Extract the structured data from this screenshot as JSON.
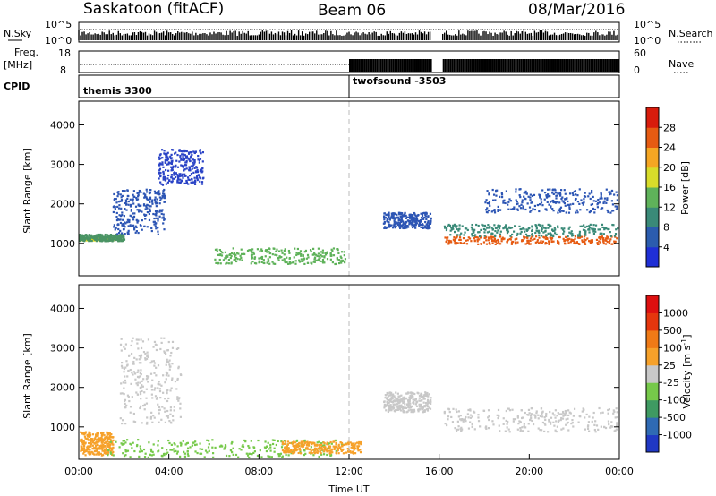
{
  "header": {
    "title": "Saskatoon (fitACF)",
    "beam": "Beam 06",
    "date": "08/Mar/2016"
  },
  "chart_data": [
    {
      "type": "line",
      "panel": "noise",
      "left_label": "N.Sky",
      "right_label": "N.Search",
      "yticks_left": [
        "10^5",
        "10^0"
      ],
      "yticks_right": [
        "10^5",
        "10^0"
      ],
      "note": "N.Search dotted"
    },
    {
      "type": "line",
      "panel": "frequency",
      "left_label_line1": "Freq.",
      "left_label_line2": "[MHz]",
      "right_label": "Nave",
      "yticks_left": [
        "18",
        "8"
      ],
      "yticks_right": [
        "60",
        "0"
      ],
      "gaps_hours": [
        [
          15.65,
          16.1
        ]
      ]
    },
    {
      "type": "table",
      "panel": "cpid",
      "label": "CPID",
      "entries": [
        {
          "start_hour": 0,
          "name": "themis 3300"
        },
        {
          "start_hour": 12,
          "name": "twofsound -3503"
        }
      ]
    },
    {
      "type": "heatmap",
      "panel": "power",
      "ylabel": "Slant Range [km]",
      "yticks": [
        "1000",
        "2000",
        "3000",
        "4000"
      ],
      "ylim": [
        180,
        4600
      ],
      "colorbar_label": "Power [dB]",
      "colorbar_ticks": [
        "4",
        "8",
        "12",
        "16",
        "20",
        "24",
        "28"
      ],
      "colorbar_colors": [
        "#1f2fd6",
        "#2b5cae",
        "#3a8a78",
        "#5fb25a",
        "#d8dc2a",
        "#f5a623",
        "#e65b12",
        "#d81c0c"
      ],
      "scatter_bands": [
        {
          "t": [
            0,
            1.5
          ],
          "range": [
            1100,
            1150
          ],
          "color": "#d8d61f"
        },
        {
          "t": [
            0.0,
            2.0
          ],
          "range": [
            1080,
            1250
          ],
          "color": "#4b9464"
        },
        {
          "t": [
            1.5,
            3.8
          ],
          "range": [
            1250,
            2400
          ],
          "color": "#2c55b4"
        },
        {
          "t": [
            3.5,
            5.5
          ],
          "range": [
            2500,
            3400
          ],
          "color": "#2a43c6"
        },
        {
          "t": [
            6,
            11.8
          ],
          "range": [
            500,
            900
          ],
          "color": "#5fb25a"
        },
        {
          "t": [
            16.2,
            23.9
          ],
          "range": [
            1000,
            1200
          ],
          "color": "#e65b12"
        },
        {
          "t": [
            13.5,
            15.6
          ],
          "range": [
            1400,
            1800
          ],
          "color": "#2c55b4"
        },
        {
          "t": [
            16.2,
            23.9
          ],
          "range": [
            1200,
            1500
          ],
          "color": "#3a8a78"
        },
        {
          "t": [
            18,
            23.9
          ],
          "range": [
            1800,
            2400
          ],
          "color": "#2c55b4"
        }
      ]
    },
    {
      "type": "heatmap",
      "panel": "velocity",
      "ylabel": "Slant Range [km]",
      "yticks": [
        "1000",
        "2000",
        "3000",
        "4000"
      ],
      "ylim": [
        180,
        4600
      ],
      "xlabel": "Time UT",
      "xticks": [
        "00:00",
        "04:00",
        "08:00",
        "12:00",
        "16:00",
        "20:00",
        "00:00"
      ],
      "xlim_hours": [
        0,
        24
      ],
      "colorbar_label": "Velocity [m s",
      "colorbar_label_sup": "-1",
      "colorbar_label_end": "]",
      "colorbar_ticks": [
        "1000",
        "500",
        "100",
        "25",
        "-25",
        "-100",
        "-500",
        "-1000"
      ],
      "colorbar_colors": [
        "#2038c4",
        "#2f6ab4",
        "#3f9a62",
        "#76c94a",
        "#c8c8c8",
        "#f6a12a",
        "#ef7a16",
        "#e5360d",
        "#dd1010"
      ],
      "scatter_bands": [
        {
          "t": [
            0,
            1.5
          ],
          "range": [
            300,
            900
          ],
          "color": "#f6a12a"
        },
        {
          "t": [
            1.2,
            11.8
          ],
          "range": [
            250,
            700
          ],
          "color": "#76c94a"
        },
        {
          "t": [
            1.8,
            4.5
          ],
          "range": [
            1100,
            3300
          ],
          "color": "#c8c8c8"
        },
        {
          "t": [
            9,
            12.5
          ],
          "range": [
            350,
            650
          ],
          "color": "#f6a12a"
        },
        {
          "t": [
            16.2,
            23.9
          ],
          "range": [
            900,
            1500
          ],
          "color": "#c8c8c8"
        },
        {
          "t": [
            13.5,
            15.6
          ],
          "range": [
            1400,
            1900
          ],
          "color": "#c8c8c8"
        }
      ]
    }
  ]
}
